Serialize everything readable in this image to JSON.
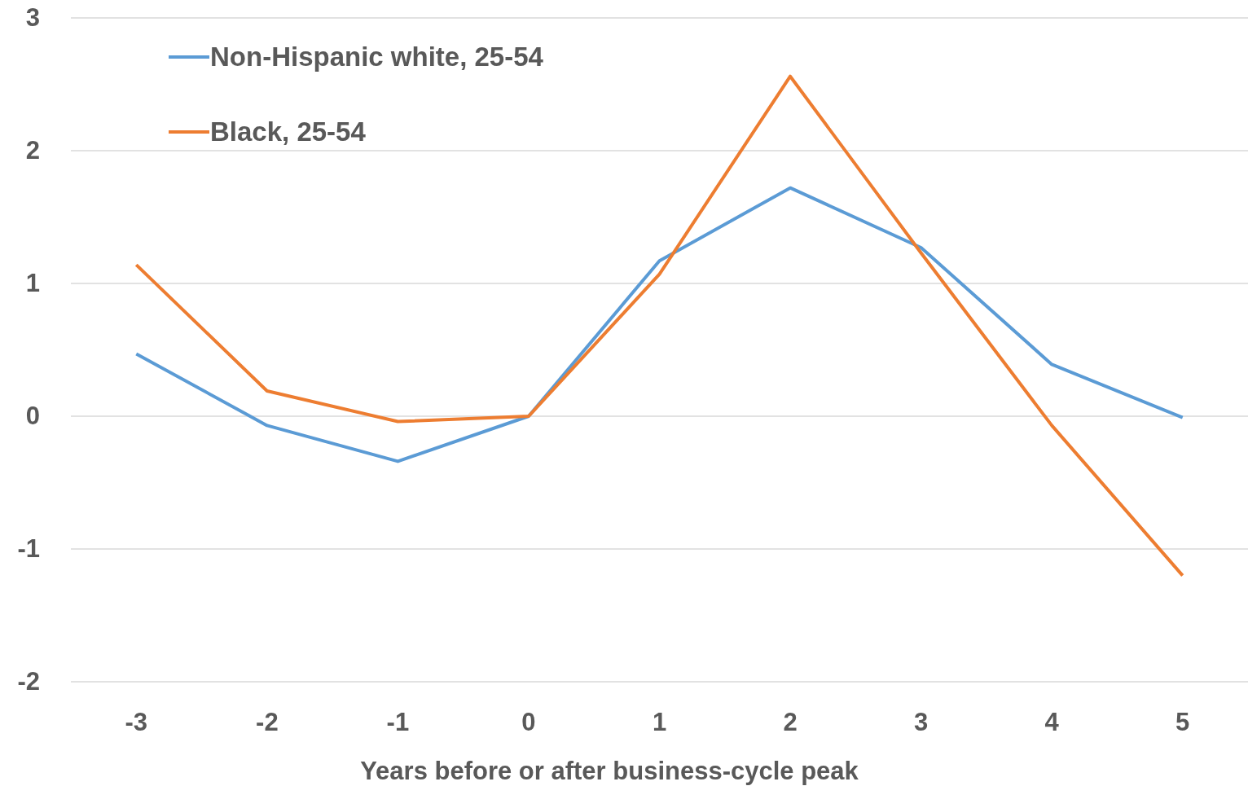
{
  "chart_data": {
    "type": "line",
    "xlabel": "Years before or after business-cycle peak",
    "categories": [
      "-3",
      "-2",
      "-1",
      "0",
      "1",
      "2",
      "3",
      "4",
      "5"
    ],
    "series": [
      {
        "name": "Non-Hispanic white, 25-54",
        "color": "#5b9bd5",
        "values": [
          0.47,
          -0.07,
          -0.34,
          0,
          1.17,
          1.72,
          1.27,
          0.39,
          -0.01
        ]
      },
      {
        "name": "Black, 25-54",
        "color": "#ed7d31",
        "values": [
          1.14,
          0.19,
          -0.04,
          0,
          1.07,
          2.56,
          1.23,
          -0.07,
          -1.2
        ]
      }
    ],
    "ylim": [
      -2,
      3
    ],
    "yticks": [
      -2,
      -1,
      0,
      1,
      2,
      3
    ],
    "grid": "y",
    "legend": "top left",
    "marker": "none",
    "line_style": "solid"
  }
}
